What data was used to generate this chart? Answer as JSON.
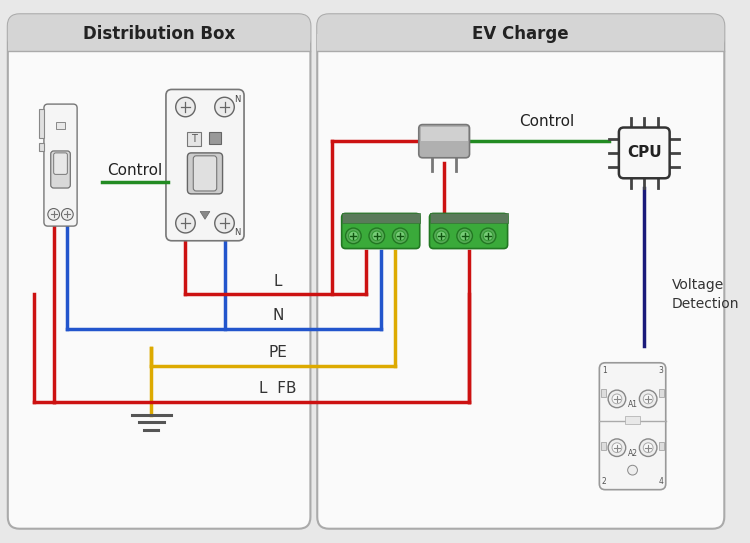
{
  "title_left": "Distribution Box",
  "title_right": "EV Charge",
  "bg_color": "#e8e8e8",
  "panel_color": "#ffffff",
  "wire_red": "#cc1111",
  "wire_blue": "#2255cc",
  "wire_yellow": "#ddaa00",
  "wire_green": "#228B22",
  "wire_dark_blue": "#1a1a7a",
  "label_L": "L",
  "label_N": "N",
  "label_PE": "PE",
  "label_LFB": "L  FB",
  "label_control_left": "Control",
  "label_control_right": "Control",
  "label_voltage": "Voltage\nDetection",
  "label_cpu": "CPU"
}
